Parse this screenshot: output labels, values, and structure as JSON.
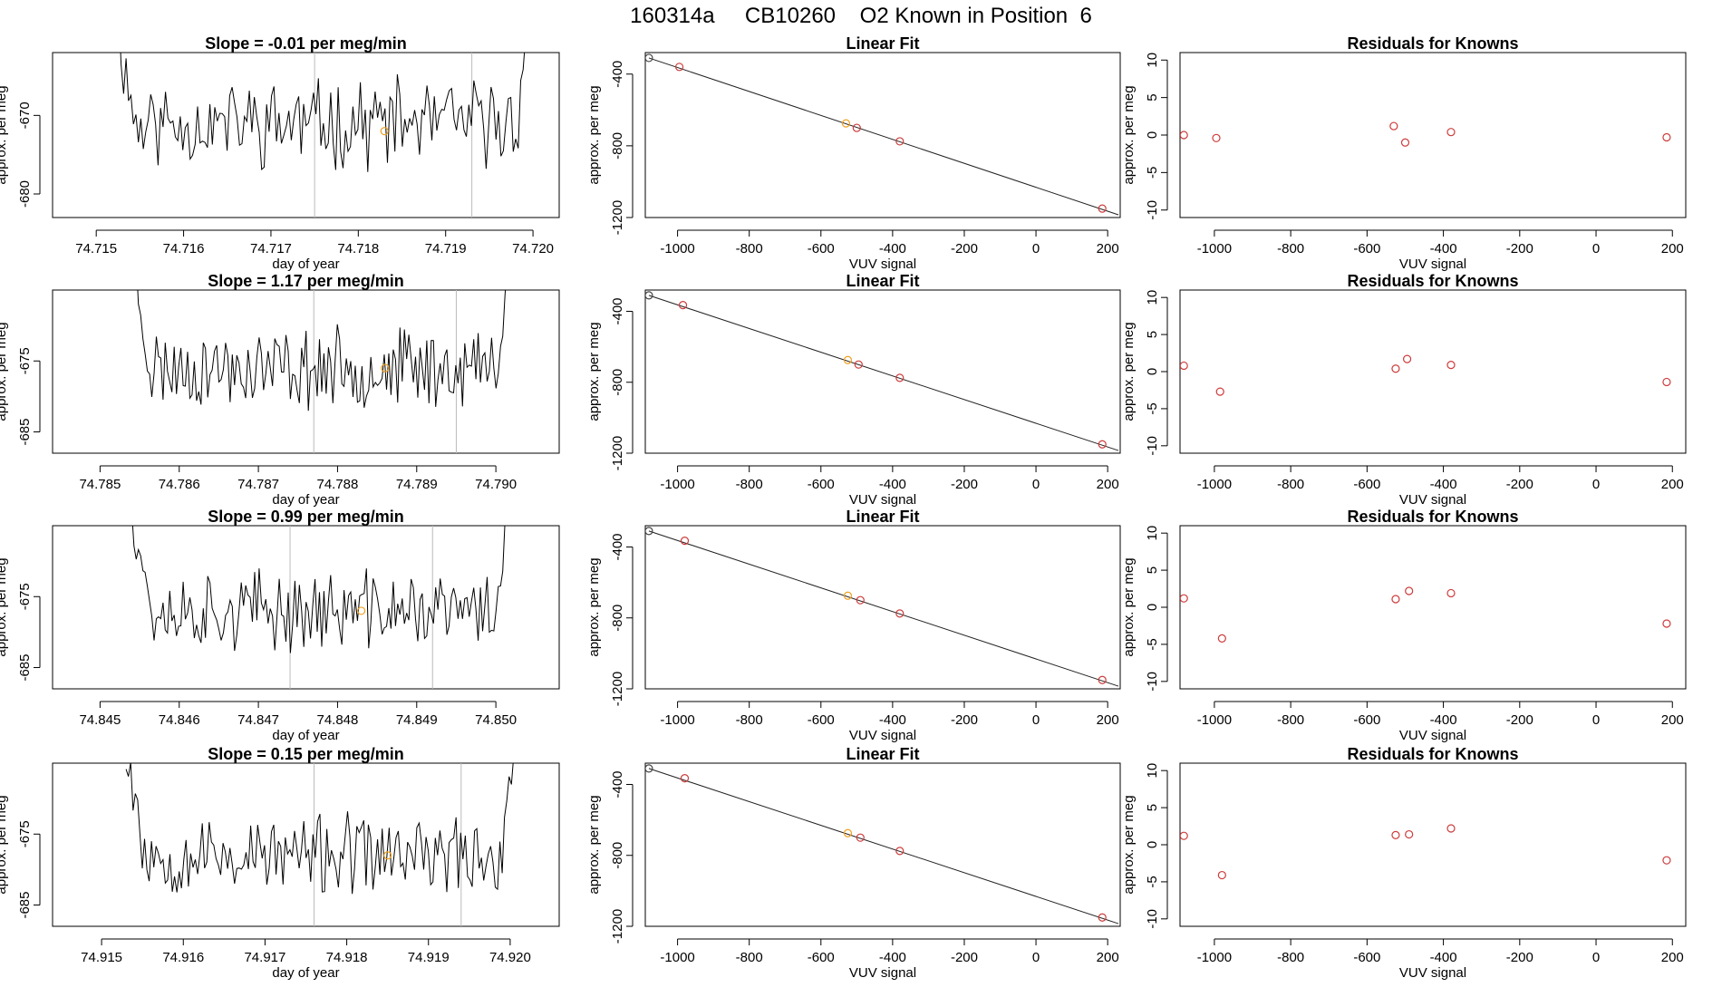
{
  "page": {
    "title_date": "160314a",
    "title_tank": "CB10260",
    "title_label": "O2 Known in Position  6",
    "title": "160314a     CB10260    O2 Known in Position  6"
  },
  "colors": {
    "line": "#000000",
    "point_gray": "#444444",
    "point_red": "#cd3b3b",
    "point_orange": "#f0a020",
    "vline": "#bbbbbb"
  },
  "chart_data": [
    {
      "type": "line",
      "row": 0,
      "panel": "slope",
      "title": "Slope =  -0.01  per meg/min",
      "xlabel": "day of year",
      "ylabel": "approx. per meg",
      "xlim": [
        74.7145,
        74.7203
      ],
      "ylim": [
        -683,
        -662
      ],
      "xticks": [
        74.715,
        74.716,
        74.717,
        74.718,
        74.719,
        74.72
      ],
      "xtick_labels": [
        "74.715",
        "74.716",
        "74.717",
        "74.718",
        "74.719",
        "74.720"
      ],
      "yticks": [
        -670,
        -680
      ],
      "ytick_labels": [
        "-670",
        "-680"
      ],
      "vlines": [
        74.7175,
        74.7193
      ],
      "marker": {
        "x": 74.7183,
        "y": -672
      },
      "series_start": 74.7152,
      "series_end": 74.72,
      "series_mean": -671,
      "seed": 11
    },
    {
      "type": "scatter",
      "row": 0,
      "panel": "fit",
      "title": "Linear Fit",
      "xlabel": "VUV signal",
      "ylabel": "approx. per meg",
      "xlim": [
        -1090,
        235
      ],
      "ylim": [
        -1200,
        -280
      ],
      "xticks": [
        -1000,
        -800,
        -600,
        -400,
        -200,
        0,
        200
      ],
      "xtick_labels": [
        "-1000",
        "-800",
        "-600",
        "-400",
        "-200",
        "0",
        "200"
      ],
      "yticks": [
        -400,
        -800,
        -1200
      ],
      "ytick_labels": [
        "-400",
        "-800",
        "-1200"
      ],
      "points": [
        [
          -1080,
          -310,
          "gray"
        ],
        [
          -995,
          -360,
          "red"
        ],
        [
          -530,
          -675,
          "orange"
        ],
        [
          -500,
          -700,
          "red"
        ],
        [
          -380,
          -775,
          "red"
        ],
        [
          185,
          -1150,
          "red"
        ]
      ],
      "fit_line": [
        [
          -1080,
          -310
        ],
        [
          230,
          -1185
        ]
      ]
    },
    {
      "type": "scatter",
      "row": 0,
      "panel": "residuals",
      "title": "Residuals for Knowns",
      "xlabel": "VUV signal",
      "ylabel": "approx. per meg",
      "xlim": [
        -1090,
        235
      ],
      "ylim": [
        -11,
        11
      ],
      "xticks": [
        -1000,
        -800,
        -600,
        -400,
        -200,
        0,
        200
      ],
      "xtick_labels": [
        "-1000",
        "-800",
        "-600",
        "-400",
        "-200",
        "0",
        "200"
      ],
      "yticks": [
        10,
        5,
        0,
        -5,
        -10
      ],
      "ytick_labels": [
        "10",
        "5",
        "0",
        "-5",
        "-10"
      ],
      "points": [
        [
          -1080,
          0.0
        ],
        [
          -995,
          -0.4
        ],
        [
          -530,
          1.2
        ],
        [
          -500,
          -1.0
        ],
        [
          -380,
          0.4
        ],
        [
          185,
          -0.3
        ]
      ]
    },
    {
      "type": "line",
      "row": 1,
      "panel": "slope",
      "title": "Slope =  1.17  per meg/min",
      "xlabel": "day of year",
      "ylabel": "approx. per meg",
      "xlim": [
        74.7844,
        74.7908
      ],
      "ylim": [
        -688,
        -665
      ],
      "xticks": [
        74.785,
        74.786,
        74.787,
        74.788,
        74.789,
        74.79
      ],
      "xtick_labels": [
        "74.785",
        "74.786",
        "74.787",
        "74.788",
        "74.789",
        "74.790"
      ],
      "yticks": [
        -675,
        -685
      ],
      "ytick_labels": [
        "-675",
        "-685"
      ],
      "vlines": [
        74.7877,
        74.7895
      ],
      "marker": {
        "x": 74.7886,
        "y": -676
      },
      "series_start": 74.7854,
      "series_end": 74.7902,
      "series_mean": -676,
      "seed": 23
    },
    {
      "type": "scatter",
      "row": 1,
      "panel": "fit",
      "title": "Linear Fit",
      "xlabel": "VUV signal",
      "ylabel": "approx. per meg",
      "xlim": [
        -1090,
        235
      ],
      "ylim": [
        -1200,
        -280
      ],
      "xticks": [
        -1000,
        -800,
        -600,
        -400,
        -200,
        0,
        200
      ],
      "xtick_labels": [
        "-1000",
        "-800",
        "-600",
        "-400",
        "-200",
        "0",
        "200"
      ],
      "yticks": [
        -400,
        -800,
        -1200
      ],
      "ytick_labels": [
        "-400",
        "-800",
        "-1200"
      ],
      "points": [
        [
          -1080,
          -310,
          "gray"
        ],
        [
          -985,
          -365,
          "red"
        ],
        [
          -525,
          -675,
          "orange"
        ],
        [
          -495,
          -700,
          "red"
        ],
        [
          -380,
          -775,
          "red"
        ],
        [
          185,
          -1150,
          "red"
        ]
      ],
      "fit_line": [
        [
          -1080,
          -310
        ],
        [
          230,
          -1185
        ]
      ]
    },
    {
      "type": "scatter",
      "row": 1,
      "panel": "residuals",
      "title": "Residuals for Knowns",
      "xlabel": "VUV signal",
      "ylabel": "approx. per meg",
      "xlim": [
        -1090,
        235
      ],
      "ylim": [
        -11,
        11
      ],
      "xticks": [
        -1000,
        -800,
        -600,
        -400,
        -200,
        0,
        200
      ],
      "xtick_labels": [
        "-1000",
        "-800",
        "-600",
        "-400",
        "-200",
        "0",
        "200"
      ],
      "yticks": [
        10,
        5,
        0,
        -5,
        -10
      ],
      "ytick_labels": [
        "10",
        "5",
        "0",
        "-5",
        "-10"
      ],
      "points": [
        [
          -1080,
          0.8
        ],
        [
          -985,
          -2.7
        ],
        [
          -525,
          0.4
        ],
        [
          -495,
          1.7
        ],
        [
          -380,
          0.9
        ],
        [
          185,
          -1.4
        ]
      ]
    },
    {
      "type": "line",
      "row": 2,
      "panel": "slope",
      "title": "Slope =  0.99  per meg/min",
      "xlabel": "day of year",
      "ylabel": "approx. per meg",
      "xlim": [
        74.8444,
        74.8508
      ],
      "ylim": [
        -688,
        -665
      ],
      "xticks": [
        74.845,
        74.846,
        74.847,
        74.848,
        74.849,
        74.85
      ],
      "xtick_labels": [
        "74.845",
        "74.846",
        "74.847",
        "74.848",
        "74.849",
        "74.850"
      ],
      "yticks": [
        -675,
        -685
      ],
      "ytick_labels": [
        "-675",
        "-685"
      ],
      "vlines": [
        74.8474,
        74.8492
      ],
      "marker": {
        "x": 74.8483,
        "y": -677
      },
      "series_start": 74.8454,
      "series_end": 74.8502,
      "series_mean": -677,
      "seed": 37
    },
    {
      "type": "scatter",
      "row": 2,
      "panel": "fit",
      "title": "Linear Fit",
      "xlabel": "VUV signal",
      "ylabel": "approx. per meg",
      "xlim": [
        -1090,
        235
      ],
      "ylim": [
        -1200,
        -280
      ],
      "xticks": [
        -1000,
        -800,
        -600,
        -400,
        -200,
        0,
        200
      ],
      "xtick_labels": [
        "-1000",
        "-800",
        "-600",
        "-400",
        "-200",
        "0",
        "200"
      ],
      "yticks": [
        -400,
        -800,
        -1200
      ],
      "ytick_labels": [
        "-400",
        "-800",
        "-1200"
      ],
      "points": [
        [
          -1080,
          -310,
          "gray"
        ],
        [
          -980,
          -365,
          "red"
        ],
        [
          -525,
          -675,
          "orange"
        ],
        [
          -490,
          -700,
          "red"
        ],
        [
          -380,
          -775,
          "red"
        ],
        [
          185,
          -1150,
          "red"
        ]
      ],
      "fit_line": [
        [
          -1080,
          -310
        ],
        [
          230,
          -1185
        ]
      ]
    },
    {
      "type": "scatter",
      "row": 2,
      "panel": "residuals",
      "title": "Residuals for Knowns",
      "xlabel": "VUV signal",
      "ylabel": "approx. per meg",
      "xlim": [
        -1090,
        235
      ],
      "ylim": [
        -11,
        11
      ],
      "xticks": [
        -1000,
        -800,
        -600,
        -400,
        -200,
        0,
        200
      ],
      "xtick_labels": [
        "-1000",
        "-800",
        "-600",
        "-400",
        "-200",
        "0",
        "200"
      ],
      "yticks": [
        10,
        5,
        0,
        -5,
        -10
      ],
      "ytick_labels": [
        "10",
        "5",
        "0",
        "-5",
        "-10"
      ],
      "points": [
        [
          -1080,
          1.2
        ],
        [
          -980,
          -4.2
        ],
        [
          -525,
          1.1
        ],
        [
          -490,
          2.2
        ],
        [
          -380,
          1.9
        ],
        [
          185,
          -2.2
        ]
      ]
    },
    {
      "type": "line",
      "row": 3,
      "panel": "slope",
      "title": "Slope =  0.15  per meg/min",
      "xlabel": "day of year",
      "ylabel": "approx. per meg",
      "xlim": [
        74.9144,
        74.9206
      ],
      "ylim": [
        -688,
        -665
      ],
      "xticks": [
        74.915,
        74.916,
        74.917,
        74.918,
        74.919,
        74.92
      ],
      "xtick_labels": [
        "74.915",
        "74.916",
        "74.917",
        "74.918",
        "74.919",
        "74.920"
      ],
      "yticks": [
        -675,
        -685
      ],
      "ytick_labels": [
        "-675",
        "-685"
      ],
      "vlines": [
        74.9176,
        74.9194
      ],
      "marker": {
        "x": 74.9185,
        "y": -678
      },
      "series_start": 74.9153,
      "series_end": 74.9201,
      "series_mean": -678,
      "seed": 53
    },
    {
      "type": "scatter",
      "row": 3,
      "panel": "fit",
      "title": "Linear Fit",
      "xlabel": "VUV signal",
      "ylabel": "approx. per meg",
      "xlim": [
        -1090,
        235
      ],
      "ylim": [
        -1200,
        -280
      ],
      "xticks": [
        -1000,
        -800,
        -600,
        -400,
        -200,
        0,
        200
      ],
      "xtick_labels": [
        "-1000",
        "-800",
        "-600",
        "-400",
        "-200",
        "0",
        "200"
      ],
      "yticks": [
        -400,
        -800,
        -1200
      ],
      "ytick_labels": [
        "-400",
        "-800",
        "-1200"
      ],
      "points": [
        [
          -1080,
          -310,
          "gray"
        ],
        [
          -980,
          -365,
          "red"
        ],
        [
          -525,
          -675,
          "orange"
        ],
        [
          -490,
          -700,
          "red"
        ],
        [
          -380,
          -775,
          "red"
        ],
        [
          185,
          -1150,
          "red"
        ]
      ],
      "fit_line": [
        [
          -1080,
          -310
        ],
        [
          230,
          -1185
        ]
      ]
    },
    {
      "type": "scatter",
      "row": 3,
      "panel": "residuals",
      "title": "Residuals for Knowns",
      "xlabel": "VUV signal",
      "ylabel": "approx. per meg",
      "xlim": [
        -1090,
        235
      ],
      "ylim": [
        -11,
        11
      ],
      "xticks": [
        -1000,
        -800,
        -600,
        -400,
        -200,
        0,
        200
      ],
      "xtick_labels": [
        "-1000",
        "-800",
        "-600",
        "-400",
        "-200",
        "0",
        "200"
      ],
      "yticks": [
        10,
        5,
        0,
        -5,
        -10
      ],
      "ytick_labels": [
        "10",
        "5",
        "0",
        "-5",
        "-10"
      ],
      "points": [
        [
          -1080,
          1.2
        ],
        [
          -980,
          -4.1
        ],
        [
          -525,
          1.3
        ],
        [
          -490,
          1.4
        ],
        [
          -380,
          2.2
        ],
        [
          185,
          -2.1
        ]
      ]
    }
  ]
}
